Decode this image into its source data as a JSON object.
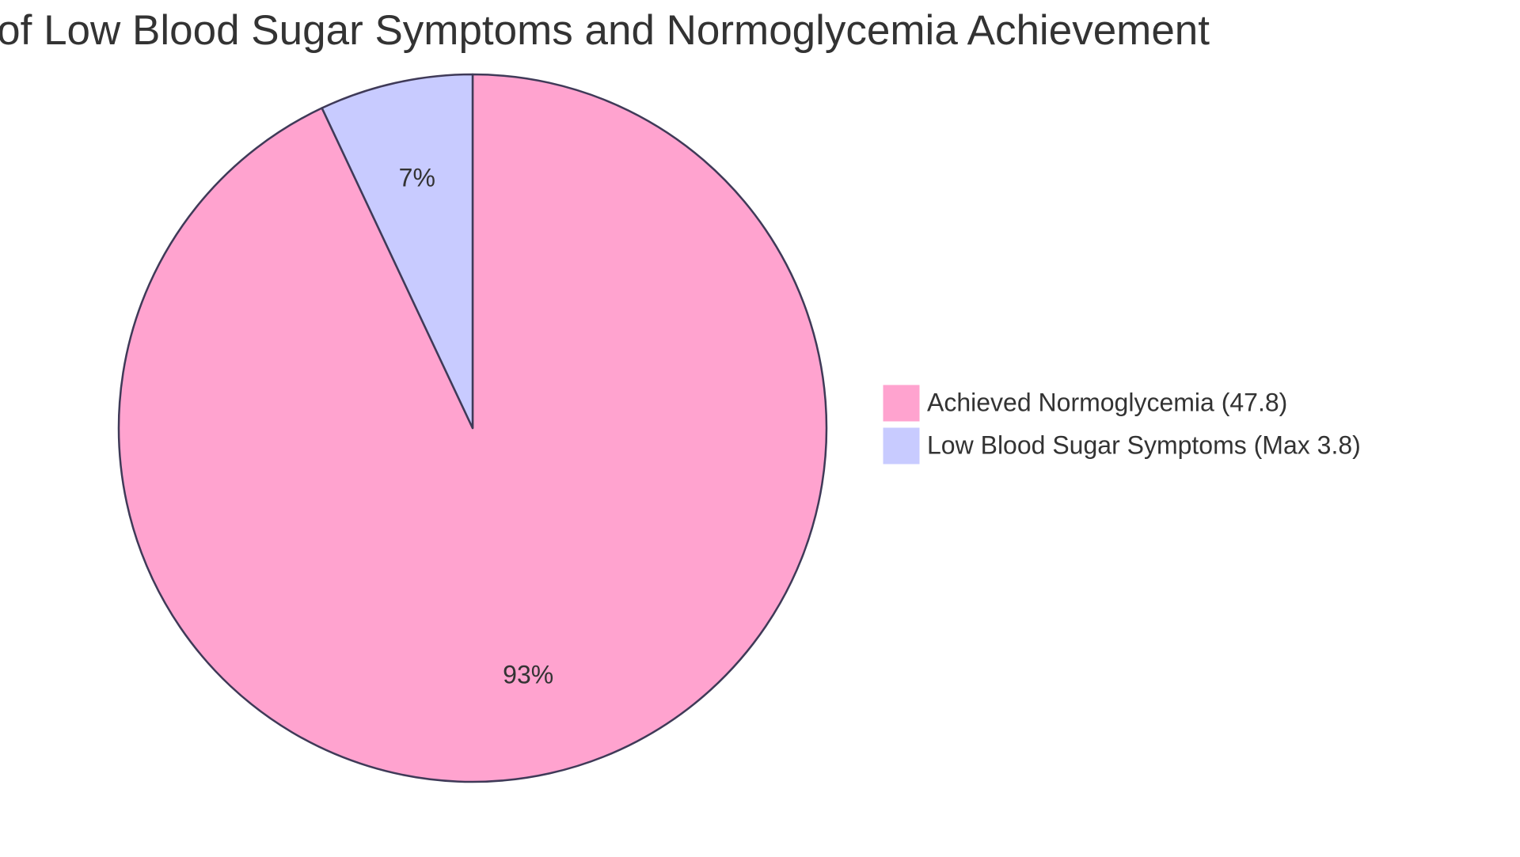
{
  "chart_data": {
    "type": "pie",
    "title": "of Low Blood Sugar Symptoms and Normoglycemia Achievement",
    "categories": [
      "Achieved Normoglycemia (47.8)",
      "Low Blood Sugar Symptoms (Max 3.8)"
    ],
    "values": [
      93,
      7
    ],
    "value_labels": [
      "93%",
      "7%"
    ],
    "colors": [
      "#ffa3cf",
      "#c8cbff"
    ],
    "stroke": "#3f3a58",
    "legend": "right"
  }
}
